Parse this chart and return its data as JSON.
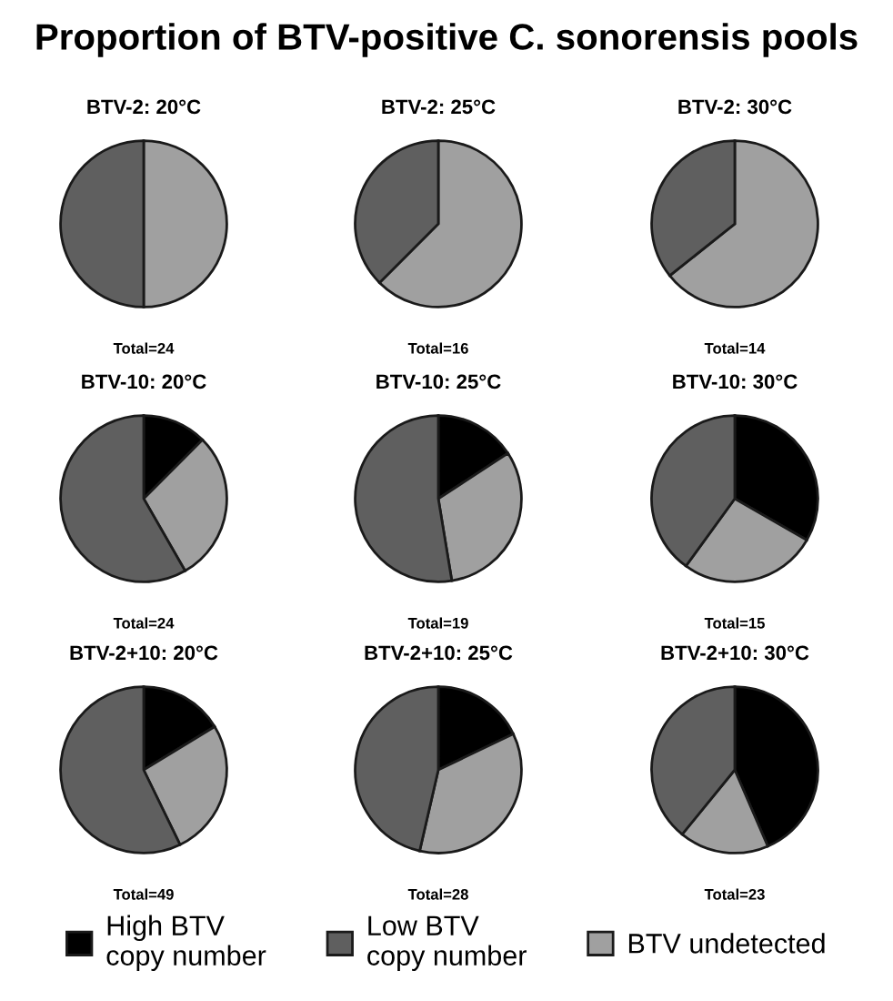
{
  "chart_data": [
    {
      "type": "other",
      "title": "Proportion of BTV-positive C. sonorensis pools"
    },
    {
      "type": "pie",
      "title": "BTV-2: 20°C",
      "categories": [
        "High BTV\ncopy number",
        "BTV undetected",
        "Low BTV\ncopy number"
      ],
      "values": [
        0,
        50,
        50
      ],
      "colors": [
        "#000000",
        "#a0a0a0",
        "#5f5f5f"
      ],
      "annotations": [
        "Total=24"
      ],
      "legend": "bottom"
    },
    {
      "type": "pie",
      "title": "BTV-2: 25°C",
      "values": [
        0,
        62.5,
        37.5
      ],
      "colors": [
        "#000000",
        "#a0a0a0",
        "#5f5f5f"
      ],
      "annotations": [
        "Total=16"
      ]
    },
    {
      "type": "pie",
      "title": "BTV-2: 30°C",
      "values": [
        0,
        64.3,
        35.7
      ],
      "colors": [
        "#000000",
        "#a0a0a0",
        "#5f5f5f"
      ],
      "annotations": [
        "Total=14"
      ]
    },
    {
      "type": "pie",
      "title": "BTV-10: 20°C",
      "values": [
        12.5,
        29.2,
        58.3
      ],
      "colors": [
        "#000000",
        "#a0a0a0",
        "#5f5f5f"
      ],
      "annotations": [
        "Total=24"
      ]
    },
    {
      "type": "pie",
      "title": "BTV-10: 25°C",
      "values": [
        15.8,
        31.6,
        52.6
      ],
      "colors": [
        "#000000",
        "#a0a0a0",
        "#5f5f5f"
      ],
      "annotations": [
        "Total=19"
      ]
    },
    {
      "type": "pie",
      "title": "BTV-10: 30°C",
      "values": [
        33.3,
        26.7,
        40
      ],
      "colors": [
        "#000000",
        "#a0a0a0",
        "#5f5f5f"
      ],
      "annotations": [
        "Total=15"
      ]
    },
    {
      "type": "pie",
      "title": "BTV-2+10: 20°C",
      "values": [
        16.3,
        26.5,
        57.2
      ],
      "colors": [
        "#000000",
        "#a0a0a0",
        "#5f5f5f"
      ],
      "annotations": [
        "Total=49"
      ]
    },
    {
      "type": "pie",
      "title": "BTV-2+10: 25°C",
      "values": [
        17.9,
        35.7,
        46.4
      ],
      "colors": [
        "#000000",
        "#a0a0a0",
        "#5f5f5f"
      ],
      "annotations": [
        "Total=28"
      ]
    },
    {
      "type": "pie",
      "title": "BTV-2+10: 30°C",
      "values": [
        43.5,
        17.4,
        39.1
      ],
      "colors": [
        "#000000",
        "#a0a0a0",
        "#5f5f5f"
      ],
      "annotations": [
        "Total=23"
      ]
    }
  ]
}
